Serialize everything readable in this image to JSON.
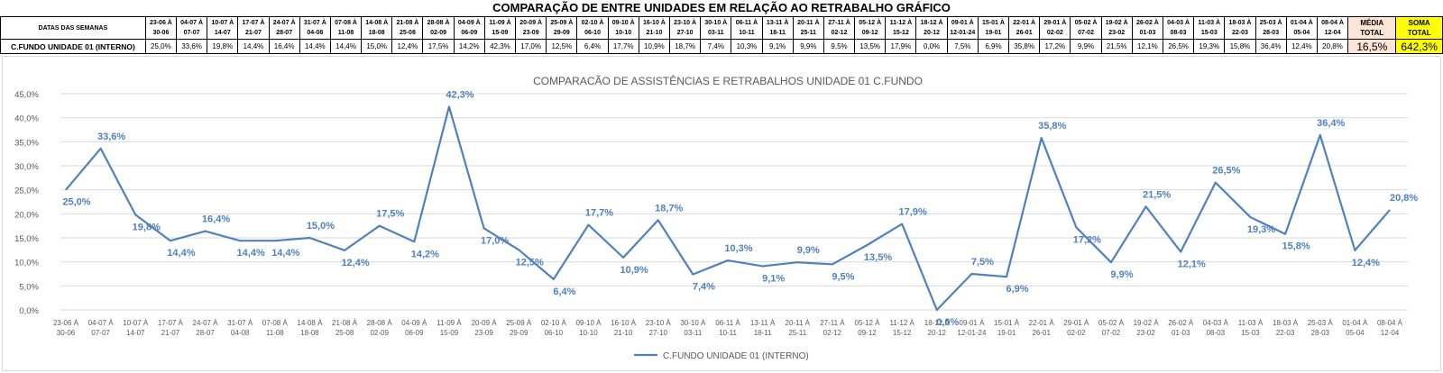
{
  "sheet_title": "COMPARAÇÃO DE ENTRE UNIDADES EM RELAÇÃO AO RETRABALHO GRÁFICO",
  "table": {
    "header_label": "DATAS DAS SEMANAS",
    "row_label": "C.FUNDO UNIDADE 01 (INTERNO)",
    "media_label": [
      "MÉDIA",
      "TOTAL"
    ],
    "soma_label": [
      "SOMA",
      "TOTAL"
    ],
    "weeks": [
      [
        "23-06 À",
        "30-06"
      ],
      [
        "04-07 À",
        "07-07"
      ],
      [
        "10-07 À",
        "14-07"
      ],
      [
        "17-07 À",
        "21-07"
      ],
      [
        "24-07 À",
        "28-07"
      ],
      [
        "31-07 À",
        "04-08"
      ],
      [
        "07-08 À",
        "11-08"
      ],
      [
        "14-08 À",
        "18-08"
      ],
      [
        "21-08 À",
        "25-08"
      ],
      [
        "28-08 À",
        "02-09"
      ],
      [
        "04-09 À",
        "06-09"
      ],
      [
        "11-09 À",
        "15-09"
      ],
      [
        "20-09 À",
        "23-09"
      ],
      [
        "25-09 À",
        "29-09"
      ],
      [
        "02-10 À",
        "06-10"
      ],
      [
        "09-10 À",
        "10-10"
      ],
      [
        "16-10 À",
        "21-10"
      ],
      [
        "23-10 À",
        "27-10"
      ],
      [
        "30-10 À",
        "03-11"
      ],
      [
        "06-11 À",
        "10-11"
      ],
      [
        "13-11 À",
        "18-11"
      ],
      [
        "20-11 À",
        "25-11"
      ],
      [
        "27-11 À",
        "02-12"
      ],
      [
        "05-12 À",
        "09-12"
      ],
      [
        "11-12 À",
        "15-12"
      ],
      [
        "18-12 À",
        "20-12"
      ],
      [
        "09-01 À",
        "12-01-24"
      ],
      [
        "15-01 À",
        "19-01"
      ],
      [
        "22-01 À",
        "26-01"
      ],
      [
        "29-01 À",
        "02-02"
      ],
      [
        "05-02 À",
        "07-02"
      ],
      [
        "19-02 À",
        "23-02"
      ],
      [
        "26-02 À",
        "01-03"
      ],
      [
        "04-03 À",
        "08-03"
      ],
      [
        "11-03 À",
        "15-03"
      ],
      [
        "18-03 À",
        "22-03"
      ],
      [
        "25-03 À",
        "28-03"
      ],
      [
        "01-04 À",
        "05-04"
      ],
      [
        "08-04 À",
        "12-04"
      ]
    ],
    "values_text": [
      "25,0%",
      "33,6%",
      "19,8%",
      "14,4%",
      "16,4%",
      "14,4%",
      "14,4%",
      "15,0%",
      "12,4%",
      "17,5%",
      "14,2%",
      "42,3%",
      "17,0%",
      "12,5%",
      "6,4%",
      "17,7%",
      "10,9%",
      "18,7%",
      "7,4%",
      "10,3%",
      "9,1%",
      "9,9%",
      "9,5%",
      "13,5%",
      "17,9%",
      "0,0%",
      "7,5%",
      "6,9%",
      "35,8%",
      "17,2%",
      "9,9%",
      "21,5%",
      "12,1%",
      "26,5%",
      "19,3%",
      "15,8%",
      "36,4%",
      "12,4%",
      "20,8%"
    ],
    "media_value": "16,5%",
    "soma_value": "642,3%"
  },
  "chart_data": {
    "type": "line",
    "title": "COMPARACÃO DE ASSISTÊNCIAS E RETRABALHOS UNIDADE 01 C.FUNDO",
    "categories": [
      [
        "23-06 À",
        "30-06"
      ],
      [
        "04-07 À",
        "07-07"
      ],
      [
        "10-07 À",
        "14-07"
      ],
      [
        "17-07 À",
        "21-07"
      ],
      [
        "24-07 À",
        "28-07"
      ],
      [
        "31-07 À",
        "04-08"
      ],
      [
        "07-08 À",
        "11-08"
      ],
      [
        "14-08 À",
        "18-08"
      ],
      [
        "21-08 À",
        "25-08"
      ],
      [
        "28-08 À",
        "02-09"
      ],
      [
        "04-09 À",
        "06-09"
      ],
      [
        "11-09 À",
        "15-09"
      ],
      [
        "20-09 À",
        "23-09"
      ],
      [
        "25-09 À",
        "29-09"
      ],
      [
        "02-10 À",
        "06-10"
      ],
      [
        "09-10 À",
        "10-10"
      ],
      [
        "16-10 À",
        "21-10"
      ],
      [
        "23-10 À",
        "27-10"
      ],
      [
        "30-10 À",
        "03-11"
      ],
      [
        "06-11 À",
        "10-11"
      ],
      [
        "13-11 À",
        "18-11"
      ],
      [
        "20-11 À",
        "25-11"
      ],
      [
        "27-11 À",
        "02-12"
      ],
      [
        "05-12 À",
        "09-12"
      ],
      [
        "11-12 À",
        "15-12"
      ],
      [
        "18-12 À",
        "20-12"
      ],
      [
        "09-01 À",
        "12-01-24"
      ],
      [
        "15-01 À",
        "19-01"
      ],
      [
        "22-01 À",
        "26-01"
      ],
      [
        "29-01 À",
        "02-02"
      ],
      [
        "05-02 À",
        "07-02"
      ],
      [
        "19-02 À",
        "23-02"
      ],
      [
        "26-02 À",
        "01-03"
      ],
      [
        "04-03 À",
        "08-03"
      ],
      [
        "11-03 À",
        "15-03"
      ],
      [
        "18-03 À",
        "22-03"
      ],
      [
        "25-03 À",
        "28-03"
      ],
      [
        "01-04 À",
        "05-04"
      ],
      [
        "08-04 À",
        "12-04"
      ]
    ],
    "series": [
      {
        "name": "C.FUNDO UNIDADE 01 (INTERNO)",
        "values": [
          25.0,
          33.6,
          19.8,
          14.4,
          16.4,
          14.4,
          14.4,
          15.0,
          12.4,
          17.5,
          14.2,
          42.3,
          17.0,
          12.5,
          6.4,
          17.7,
          10.9,
          18.7,
          7.4,
          10.3,
          9.1,
          9.9,
          9.5,
          13.5,
          17.9,
          0.0,
          7.5,
          6.9,
          35.8,
          17.2,
          9.9,
          21.5,
          12.1,
          26.5,
          19.3,
          15.8,
          36.4,
          12.4,
          20.8
        ],
        "labels": [
          "25,0%",
          "33,6%",
          "19,8%",
          "14,4%",
          "16,4%",
          "14,4%",
          "14,4%",
          "15,0%",
          "12,4%",
          "17,5%",
          "14,2%",
          "42,3%",
          "17,0%",
          "12,5%",
          "6,4%",
          "17,7%",
          "10,9%",
          "18,7%",
          "7,4%",
          "10,3%",
          "9,1%",
          "9,9%",
          "9,5%",
          "13,5%",
          "17,9%",
          "0,0%",
          "7,5%",
          "6,9%",
          "35,8%",
          "17,2%",
          "9,9%",
          "21,5%",
          "12,1%",
          "26,5%",
          "19,3%",
          "15,8%",
          "36,4%",
          "12,4%",
          "20,8%"
        ]
      }
    ],
    "ylim": [
      0,
      45
    ],
    "yticks": [
      0,
      5,
      10,
      15,
      20,
      25,
      30,
      35,
      40,
      45
    ],
    "ytick_labels": [
      "0,0%",
      "5,0%",
      "10,0%",
      "15,0%",
      "20,0%",
      "25,0%",
      "30,0%",
      "35,0%",
      "40,0%",
      "45,0%"
    ],
    "grid": true,
    "legend_position": "bottom",
    "colors": {
      "line": "#4f81bd",
      "labels": "#4f81bd",
      "grid": "#d9d9d9"
    }
  }
}
